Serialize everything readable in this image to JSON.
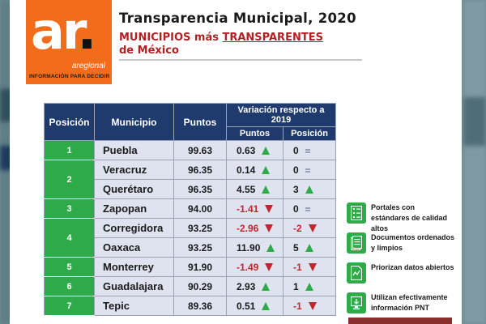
{
  "logo": {
    "mark": "ar",
    "word": "aregional",
    "tagline": "INFORMACIÓN PARA DECIDIR"
  },
  "header": {
    "title": "Transparencia Municipal, 2020",
    "subtitle_part1": "MUNICIPIOS más ",
    "subtitle_highlight": "TRANSPARENTES",
    "subtitle_part2": "de México"
  },
  "table": {
    "columns": {
      "position": "Posición",
      "municipality": "Municipio",
      "points": "Puntos",
      "variation": "Variación respecto a 2019",
      "var_points": "Puntos",
      "var_position": "Posición"
    },
    "groups": [
      {
        "position": "1",
        "rows": [
          {
            "municipality": "Puebla",
            "points": "99.63",
            "var_points": "0.63",
            "var_points_trend": "up",
            "var_position": "0",
            "var_position_trend": "same"
          }
        ]
      },
      {
        "position": "2",
        "rows": [
          {
            "municipality": "Veracruz",
            "points": "96.35",
            "var_points": "0.14",
            "var_points_trend": "up",
            "var_position": "0",
            "var_position_trend": "same"
          },
          {
            "municipality": "Querétaro",
            "points": "96.35",
            "var_points": "4.55",
            "var_points_trend": "up",
            "var_position": "3",
            "var_position_trend": "up"
          }
        ]
      },
      {
        "position": "3",
        "rows": [
          {
            "municipality": "Zapopan",
            "points": "94.00",
            "var_points": "-1.41",
            "var_points_trend": "down",
            "var_position": "0",
            "var_position_trend": "same"
          }
        ]
      },
      {
        "position": "4",
        "rows": [
          {
            "municipality": "Corregidora",
            "points": "93.25",
            "var_points": "-2.96",
            "var_points_trend": "down",
            "var_position": "-2",
            "var_position_trend": "down"
          },
          {
            "municipality": "Oaxaca",
            "points": "93.25",
            "var_points": "11.90",
            "var_points_trend": "up",
            "var_position": "5",
            "var_position_trend": "up"
          }
        ]
      },
      {
        "position": "5",
        "rows": [
          {
            "municipality": "Monterrey",
            "points": "91.90",
            "var_points": "-1.49",
            "var_points_trend": "down",
            "var_position": "-1",
            "var_position_trend": "down"
          }
        ]
      },
      {
        "position": "6",
        "rows": [
          {
            "municipality": "Guadalajara",
            "points": "90.29",
            "var_points": "2.93",
            "var_points_trend": "up",
            "var_position": "1",
            "var_position_trend": "up"
          }
        ]
      },
      {
        "position": "7",
        "rows": [
          {
            "municipality": "Tepic",
            "points": "89.36",
            "var_points": "0.51",
            "var_points_trend": "up",
            "var_position": "-1",
            "var_position_trend": "down"
          }
        ]
      }
    ]
  },
  "legend": [
    {
      "icon": "checklist-document-icon",
      "label": "Portales con estándares de calidad altos"
    },
    {
      "icon": "ordered-document-icon",
      "label": "Documentos ordenados y limpios"
    },
    {
      "icon": "open-data-file-icon",
      "label": "Priorizan datos abiertos"
    },
    {
      "icon": "pnt-monitor-icon",
      "label": "Utilizan efectivamente información PNT"
    }
  ],
  "colors": {
    "brand_orange": "#f26c1b",
    "header_navy": "#1f3b6e",
    "position_green": "#2eaa48",
    "row_fill": "#dee3ef",
    "negative_red": "#c0272d",
    "subtitle_red": "#b22024"
  }
}
